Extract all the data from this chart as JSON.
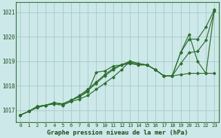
{
  "title": "Graphe pression niveau de la mer (hPa)",
  "bg_color": "#cce8e8",
  "grid_color": "#aacccc",
  "line_color": "#2d6e2d",
  "xlim": [
    -0.5,
    23.5
  ],
  "ylim": [
    1016.5,
    1021.4
  ],
  "yticks": [
    1017,
    1018,
    1019,
    1020,
    1021
  ],
  "xticks": [
    0,
    1,
    2,
    3,
    4,
    5,
    6,
    7,
    8,
    9,
    10,
    11,
    12,
    13,
    14,
    15,
    16,
    17,
    18,
    19,
    20,
    21,
    22,
    23
  ],
  "series": [
    [
      1016.8,
      1016.95,
      1017.1,
      1017.2,
      1017.25,
      1017.2,
      1017.35,
      1017.45,
      1017.6,
      1017.85,
      1018.1,
      1018.35,
      1018.65,
      1019.0,
      1018.9,
      1018.85,
      1018.65,
      1018.4,
      1018.4,
      1018.45,
      1018.5,
      1018.5,
      1018.5,
      1018.5
    ],
    [
      1016.8,
      1016.95,
      1017.15,
      1017.2,
      1017.3,
      1017.25,
      1017.4,
      1017.55,
      1017.75,
      1018.55,
      1018.6,
      1018.8,
      1018.85,
      1018.9,
      1018.85,
      1018.85,
      1018.65,
      1018.4,
      1018.4,
      1018.9,
      1019.35,
      1019.4,
      1019.85,
      1021.05
    ],
    [
      1016.8,
      1016.95,
      1017.15,
      1017.2,
      1017.3,
      1017.25,
      1017.4,
      1017.6,
      1017.85,
      1018.15,
      1018.45,
      1018.7,
      1018.85,
      1019.0,
      1018.9,
      1018.85,
      1018.65,
      1018.4,
      1018.4,
      1019.35,
      1019.9,
      1019.9,
      1020.4,
      1021.1
    ],
    [
      1016.8,
      1016.95,
      1017.15,
      1017.2,
      1017.3,
      1017.25,
      1017.4,
      1017.55,
      1017.8,
      1018.1,
      1018.4,
      1018.65,
      1018.85,
      1018.95,
      1018.85,
      1018.85,
      1018.65,
      1018.4,
      1018.4,
      1019.35,
      1020.1,
      1019.0,
      1018.5,
      1021.1
    ]
  ],
  "xlabel_fontsize": 6.5,
  "tick_fontsize": 5.2,
  "marker": "D",
  "markersize": 1.8,
  "linewidth": 0.9
}
